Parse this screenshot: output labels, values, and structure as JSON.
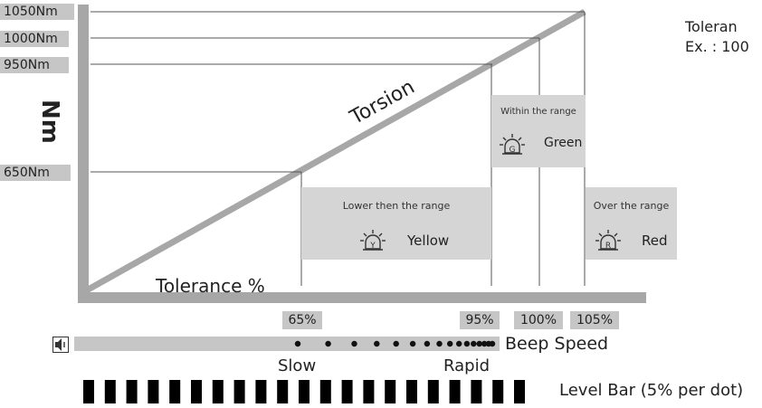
{
  "torque_labels": [
    "1050Nm",
    "1000Nm",
    "950Nm",
    "650Nm"
  ],
  "axis": {
    "y_unit": "Nm",
    "x_label": "Tolerance %",
    "line_label": "Torsion"
  },
  "percent_labels": [
    "65%",
    "95%",
    "100%",
    "105%"
  ],
  "zones": {
    "lower": {
      "caption": "Lower then the range",
      "letter": "Y",
      "color_name": "Yellow"
    },
    "within": {
      "caption": "Within the range",
      "letter": "G",
      "color_name": "Green"
    },
    "over": {
      "caption": "Over the range",
      "letter": "R",
      "color_name": "Red"
    }
  },
  "side_note": {
    "line1": "Toleran",
    "line2": "Ex. : 100"
  },
  "beep": {
    "label": "Beep Speed",
    "slow": "Slow",
    "rapid": "Rapid",
    "dot_count": 16
  },
  "level_bar": {
    "label": "Level Bar  (5% per dot)",
    "segment_count": 21
  },
  "colors": {
    "axis": "#a7a7a7",
    "label_bg": "#c6c6c6",
    "zone_bg": "#d5d5d5"
  }
}
